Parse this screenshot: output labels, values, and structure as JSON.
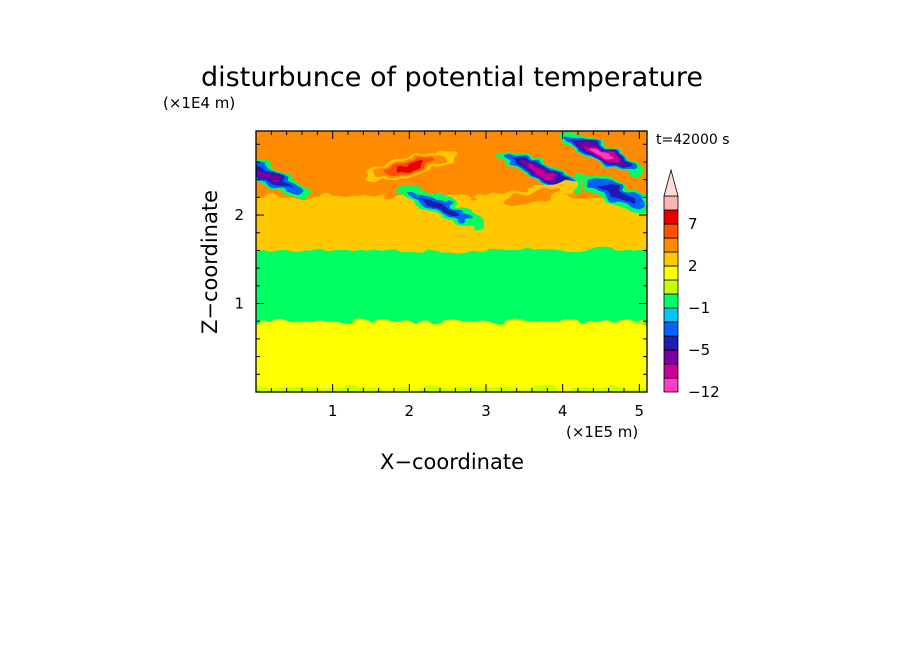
{
  "chart_data": {
    "type": "heatmap",
    "title": "disturbunce of potential temperature",
    "time_label": "t=42000 s",
    "xlabel": "X−coordinate",
    "ylabel": "Z−coordinate",
    "x_unit": "(×1E5 m)",
    "y_unit": "(×1E4 m)",
    "xlim": [
      0,
      5.1
    ],
    "ylim": [
      0,
      2.95
    ],
    "x_ticks": [
      1,
      2,
      3,
      4,
      5
    ],
    "y_ticks": [
      1,
      2
    ],
    "x_tick_labels": [
      "1",
      "2",
      "3",
      "4",
      "5"
    ],
    "y_tick_labels": [
      "1",
      "2"
    ],
    "colorbar": {
      "levels": [
        -12,
        -9,
        -7,
        -5,
        -3,
        -2,
        -1,
        0,
        1,
        2,
        3,
        5,
        7,
        9,
        12
      ],
      "tick_labels": [
        "7",
        "2",
        "−1",
        "−5",
        "−12"
      ],
      "tick_values": [
        7,
        2,
        -1,
        -5,
        -12
      ],
      "colors": [
        "#ff3cc8",
        "#c80096",
        "#7800a0",
        "#1e1eb4",
        "#0064ff",
        "#00c8ff",
        "#00ff64",
        "#c8ff00",
        "#ffff00",
        "#ffc800",
        "#ff8c00",
        "#ff5000",
        "#e60000",
        "#ffb4b4"
      ],
      "extend": "max"
    },
    "description_bands": [
      {
        "z_range": [
          0,
          0.05
        ],
        "value": 0.5
      },
      {
        "z_range": [
          0.05,
          0.8
        ],
        "value": 1.5
      },
      {
        "z_range": [
          0.8,
          1.6
        ],
        "value": -0.5
      },
      {
        "z_range": [
          1.6,
          2.2
        ],
        "value": 2.5
      },
      {
        "z_range": [
          2.2,
          2.95
        ],
        "value": 4
      }
    ],
    "features": [
      {
        "x": 0.15,
        "z": 2.45,
        "value": -6
      },
      {
        "x": 2.4,
        "z": 2.1,
        "value": -5
      },
      {
        "x": 3.7,
        "z": 2.5,
        "value": -8
      },
      {
        "x": 4.5,
        "z": 2.7,
        "value": -10
      },
      {
        "x": 4.7,
        "z": 2.25,
        "value": -5
      },
      {
        "x": 2.0,
        "z": 2.55,
        "value": 7
      },
      {
        "x": 3.6,
        "z": 2.2,
        "value": 4
      }
    ]
  }
}
